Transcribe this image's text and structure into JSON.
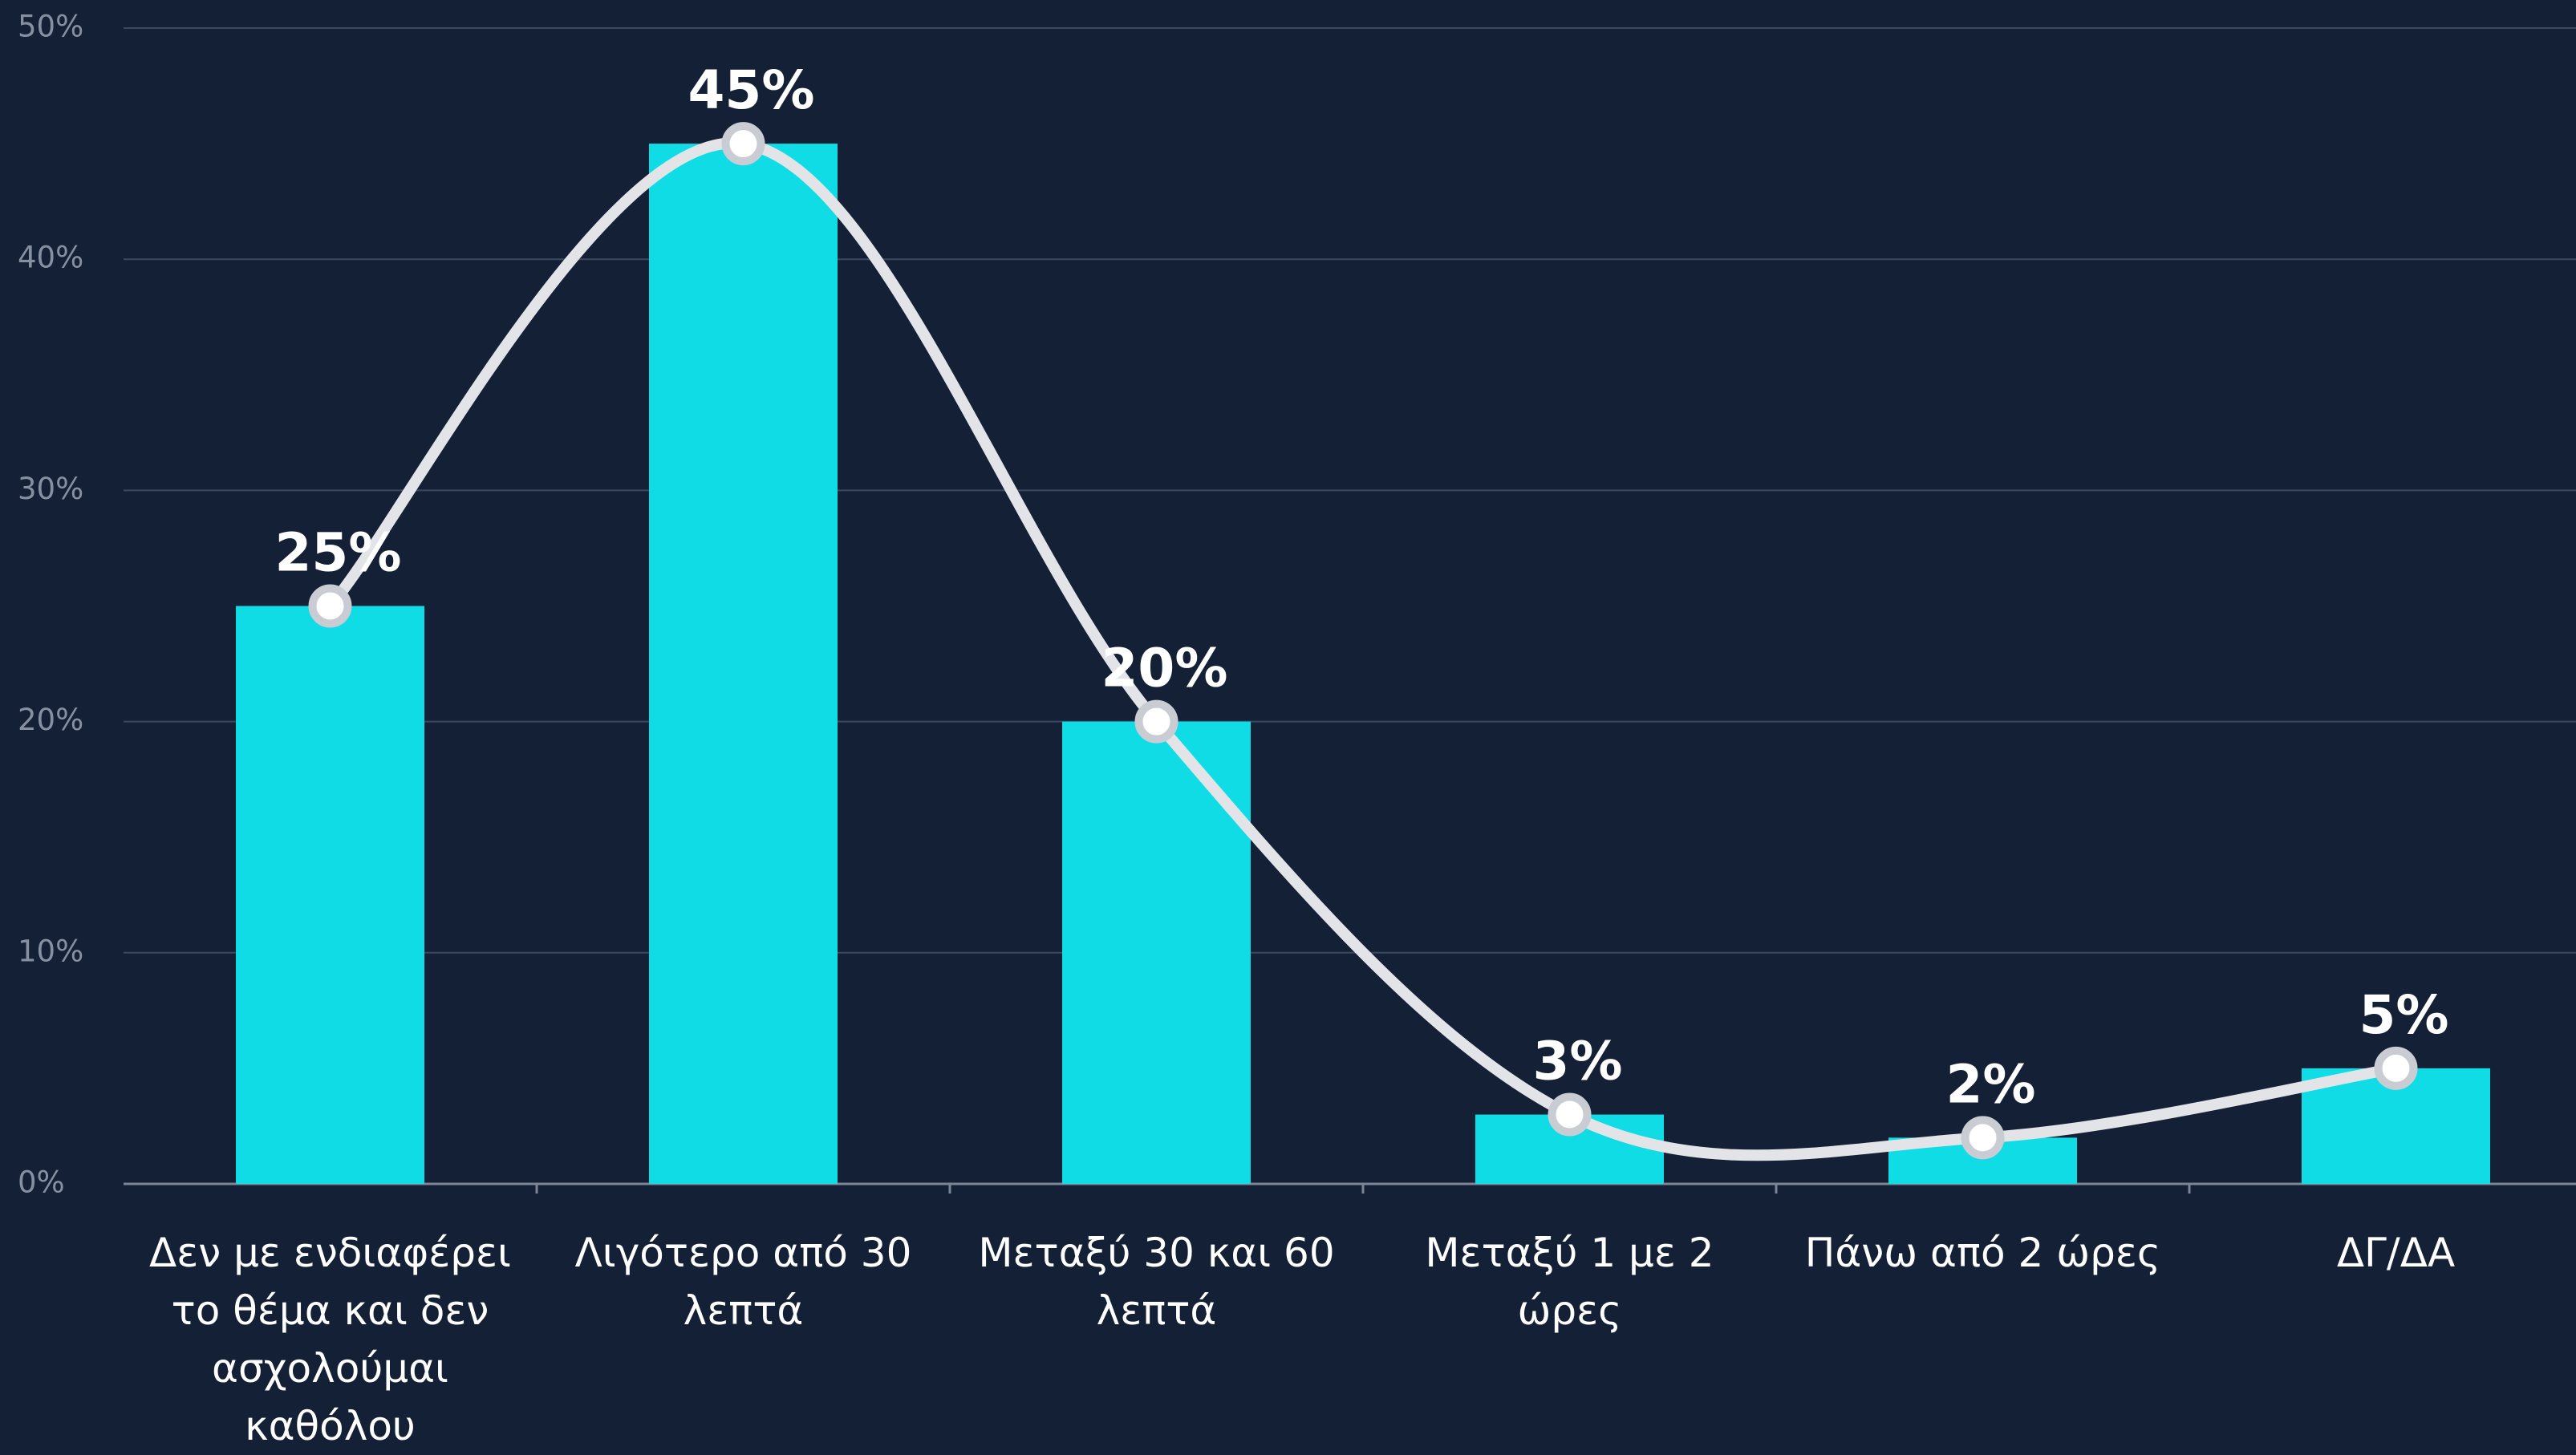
{
  "chart_data": {
    "type": "bar",
    "categories": [
      "Δεν με ενδιαφέρει το θέμα και δεν ασχολούμαι καθόλου",
      "Λιγότερο από 30 λεπτά",
      "Μεταξύ 30 και 60 λεπτά",
      "Μεταξύ 1 με 2 ώρες",
      "Πάνω από 2 ώρες",
      "ΔΓ/ΔΑ"
    ],
    "values": [
      25,
      45,
      20,
      3,
      2,
      5
    ],
    "value_labels": [
      "25%",
      "45%",
      "20%",
      "3%",
      "2%",
      "5%"
    ],
    "color": "#0fdce5",
    "line_color": "#e2e4e8",
    "ylim": [
      0,
      50
    ],
    "yticks": [
      {
        "value": 0,
        "label": "0%"
      },
      {
        "value": 10,
        "label": "10%"
      },
      {
        "value": 20,
        "label": "20%"
      },
      {
        "value": 30,
        "label": "30%"
      },
      {
        "value": 40,
        "label": "40%"
      },
      {
        "value": 50,
        "label": "50%"
      }
    ],
    "grid": true
  }
}
